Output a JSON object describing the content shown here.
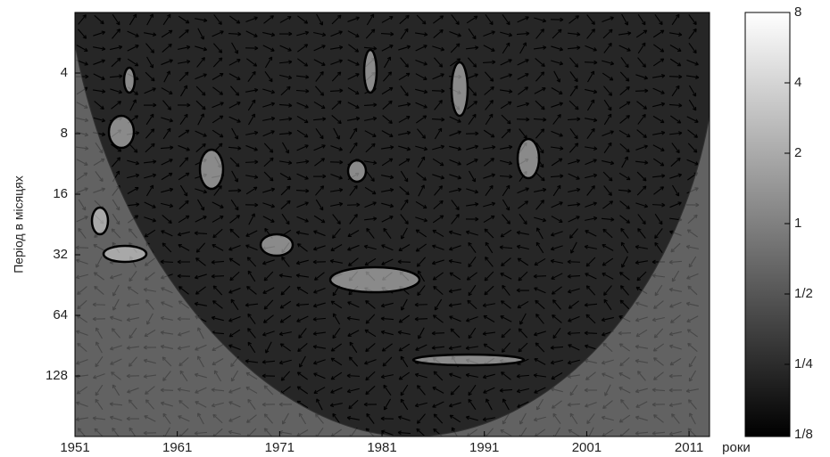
{
  "chart_data": {
    "type": "wavelet",
    "xlabel": "роки",
    "ylabel": "Період в місяцях",
    "xlim": [
      1951,
      2013
    ],
    "xticks": [
      1951,
      1961,
      1971,
      1981,
      1991,
      2001,
      2011
    ],
    "ylim": [
      2,
      256
    ],
    "yscale": "log",
    "yticks": [
      4,
      8,
      16,
      32,
      64,
      128
    ],
    "colorbar": {
      "lim": [
        0.125,
        8
      ],
      "scale": "log",
      "ticks": [
        {
          "value": 0.125,
          "label": "1/8"
        },
        {
          "value": 0.25,
          "label": "1/4"
        },
        {
          "value": 0.5,
          "label": "1/2"
        },
        1,
        2,
        4,
        8
      ]
    }
  }
}
